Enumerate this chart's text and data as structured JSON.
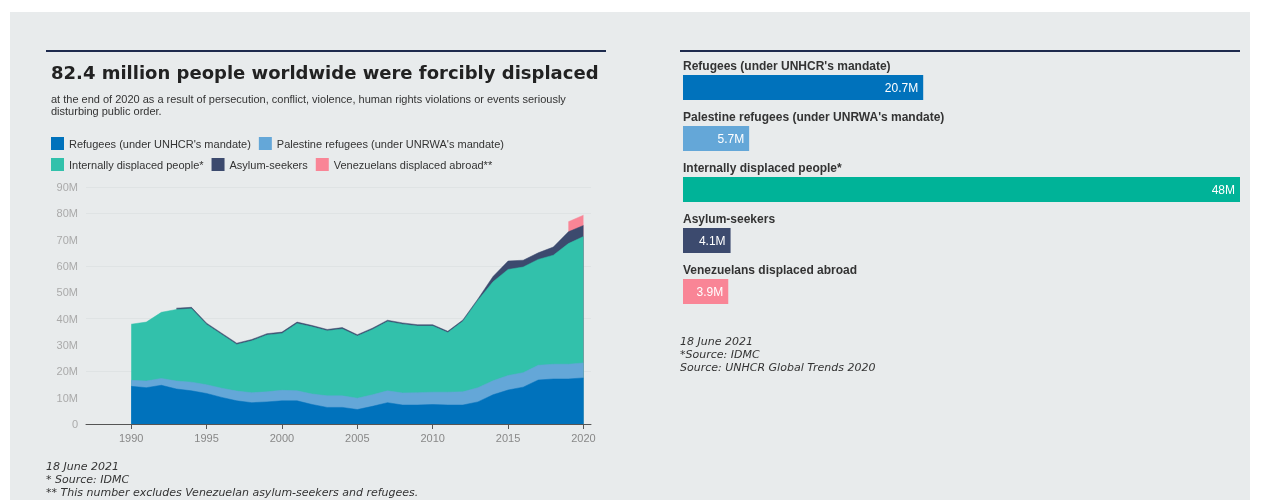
{
  "chart_data": [
    {
      "type": "area",
      "title": "82.4 million people worldwide were forcibly displaced",
      "subtitle": "at the end of 2020 as a result of persecution, conflict, violence, human rights violations or events seriously disturbing public order.",
      "stacked": true,
      "legend": "top",
      "grid": "y",
      "marker": "none",
      "x": [
        1990,
        1991,
        1992,
        1993,
        1994,
        1995,
        1996,
        1997,
        1998,
        1999,
        2000,
        2001,
        2002,
        2003,
        2004,
        2005,
        2006,
        2007,
        2008,
        2009,
        2010,
        2011,
        2012,
        2013,
        2014,
        2015,
        2016,
        2017,
        2018,
        2019,
        2020
      ],
      "xlim": [
        1987,
        2020.5
      ],
      "xticks": [
        1990,
        1995,
        2000,
        2005,
        2010,
        2015,
        2020
      ],
      "ylim": [
        0,
        90
      ],
      "yticks": [
        {
          "value": 0,
          "label": "0"
        },
        {
          "value": 10,
          "label": "10M"
        },
        {
          "value": 20,
          "label": "20M"
        },
        {
          "value": 30,
          "label": "30M"
        },
        {
          "value": 40,
          "label": "40M"
        },
        {
          "value": 50,
          "label": "50M"
        },
        {
          "value": 60,
          "label": "60M"
        },
        {
          "value": 70,
          "label": "70M"
        },
        {
          "value": 80,
          "label": "80M"
        },
        {
          "value": 90,
          "label": "90M"
        }
      ],
      "series": [
        {
          "name": "Refugees (under UNHCR's mandate)",
          "color": "#0072bc",
          "values": [
            14.3,
            13.8,
            14.7,
            13.3,
            12.6,
            11.6,
            10.1,
            8.8,
            8.1,
            8.4,
            8.8,
            8.8,
            7.4,
            6.3,
            6.3,
            5.5,
            6.7,
            8.1,
            7.2,
            7.2,
            7.4,
            7.2,
            7.2,
            8.4,
            11.1,
            12.9,
            14.0,
            16.7,
            17.1,
            17.1,
            17.5
          ]
        },
        {
          "name": "Palestine refugees (under UNRWA's mandate)",
          "color": "#64a7d8",
          "values": [
            2.3,
            2.5,
            2.6,
            3.0,
            3.3,
            3.3,
            3.5,
            3.7,
            3.8,
            3.8,
            4.0,
            3.8,
            4.0,
            4.4,
            4.4,
            4.3,
            4.4,
            4.5,
            4.6,
            4.7,
            4.7,
            4.9,
            5.0,
            5.4,
            5.3,
            5.5,
            5.5,
            5.6,
            5.6,
            5.6,
            5.7
          ]
        },
        {
          "name": "Internally displaced people*",
          "color": "#32c1ab",
          "values": [
            21.3,
            22.4,
            25.1,
            27.2,
            27.9,
            22.9,
            20.4,
            17.7,
            19.7,
            21.6,
            21.6,
            25.6,
            25.5,
            24.7,
            25.4,
            23.6,
            24.8,
            26.3,
            26.1,
            25.3,
            25.1,
            22.6,
            26.8,
            33.2,
            37.6,
            40.3,
            40.1,
            40.2,
            41.4,
            45.8,
            48.0
          ]
        },
        {
          "name": "Asylum-seekers",
          "color": "#3c4a6e",
          "values": [
            null,
            null,
            null,
            0.5,
            0.5,
            0.5,
            0.5,
            0.5,
            0.5,
            0.5,
            0.5,
            0.5,
            0.5,
            0.5,
            0.5,
            0.5,
            0.5,
            0.5,
            0.5,
            0.5,
            0.5,
            0.5,
            0.5,
            0.5,
            2.0,
            3.2,
            2.6,
            2.5,
            3.1,
            4.5,
            4.2
          ]
        },
        {
          "name": "Venezuelans displaced abroad**",
          "color": "#f98596",
          "values": [
            null,
            null,
            null,
            null,
            null,
            null,
            null,
            null,
            null,
            null,
            null,
            null,
            null,
            null,
            null,
            null,
            null,
            null,
            null,
            null,
            null,
            null,
            null,
            null,
            null,
            null,
            null,
            null,
            null,
            3.8,
            3.9
          ]
        }
      ],
      "annotations": [
        "18 June 2021",
        "* Source: IDMC",
        "** This number excludes Venezuelan asylum-seekers and refugees."
      ]
    },
    {
      "type": "bar",
      "orientation": "horizontal",
      "categories": [
        "Refugees (under UNHCR's mandate)",
        "Palestine refugees (under UNRWA's mandate)",
        "Internally displaced people*",
        "Asylum-seekers",
        "Venezuelans displaced abroad"
      ],
      "values": [
        20.7,
        5.7,
        48,
        4.1,
        3.9
      ],
      "value_labels": [
        "20.7M",
        "5.7M",
        "48M",
        "4.1M",
        "3.9M"
      ],
      "colors": [
        "#0072bc",
        "#64a7d8",
        "#00b398",
        "#3c4a6e",
        "#f98596"
      ],
      "annotations": [
        "18 June 2021",
        "*Source: IDMC",
        "Source: UNHCR Global Trends 2020"
      ]
    }
  ]
}
